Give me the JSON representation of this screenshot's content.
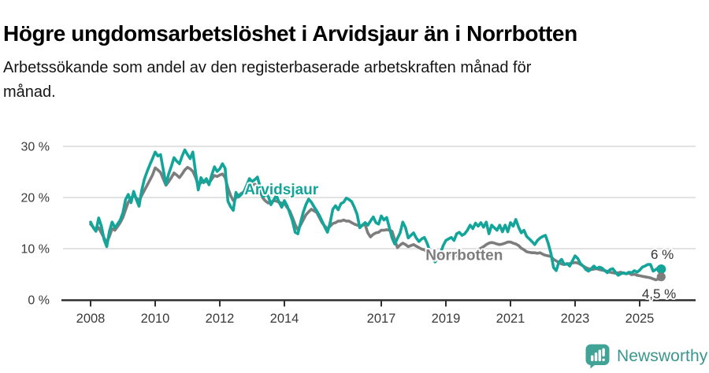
{
  "header": {
    "title": "Högre ungdomsarbetslöshet i Arvidsjaur än i Norrbotten",
    "subtitle_line1": "Arbetssökande som andel av den registerbaserade arbetskraften månad för",
    "subtitle_line2": "månad."
  },
  "branding": {
    "name": "Newsworthy",
    "logo_icon": "speech-bubble-bar-chart-icon",
    "icon_color": "#41a296",
    "text_color": "#3a968d"
  },
  "colors": {
    "arvidsjaur": "#13a59a",
    "norrbotten": "#7d7d7d",
    "axis": "#2f2f2f",
    "tick_label": "#3a3a3a",
    "gridline": "#d9d9d9",
    "end_label": "#333333"
  },
  "chart_data": {
    "type": "line",
    "title": "Högre ungdomsarbetslöshet i Arvidsjaur än i Norrbotten",
    "subtitle": "Arbetssökande som andel av den registerbaserade arbetskraften månad för månad.",
    "x_unit": "time, monthly observations",
    "x_start": {
      "year": 2008,
      "month": 1
    },
    "x_end": {
      "year": 2025,
      "month": 9
    },
    "x_frequency": "monthly",
    "x_tick_years": [
      2008,
      2010,
      2012,
      2014,
      2017,
      2019,
      2021,
      2023,
      2025
    ],
    "y_ticks": [
      {
        "value": 0,
        "label": "0 %"
      },
      {
        "value": 10,
        "label": "10 %"
      },
      {
        "value": 20,
        "label": "20 %"
      },
      {
        "value": 30,
        "label": "30 %"
      }
    ],
    "ylim": [
      0,
      30
    ],
    "grid": "horizontal",
    "legend": "inline-labels",
    "series": [
      {
        "name": "Arvidsjaur",
        "color": "#13a59a",
        "end_label": "6 %",
        "last_value": 6.0,
        "label_anchor": {
          "year": 2012.76,
          "value": 20.6
        },
        "values_monthly": [
          15.2,
          14.1,
          13.4,
          16.0,
          14.4,
          11.8,
          10.4,
          13.4,
          15.2,
          14.1,
          14.8,
          15.6,
          17.0,
          19.6,
          20.6,
          19.0,
          21.2,
          19.6,
          18.3,
          21.4,
          23.6,
          25.1,
          26.4,
          27.6,
          28.9,
          28.1,
          28.4,
          25.4,
          22.6,
          24.6,
          26.1,
          27.8,
          27.1,
          26.6,
          28.1,
          29.3,
          28.4,
          27.6,
          28.9,
          24.9,
          21.5,
          23.9,
          22.9,
          23.7,
          22.5,
          24.4,
          26.0,
          25.1,
          25.6,
          26.6,
          25.7,
          19.3,
          18.2,
          17.5,
          21.0,
          20.1,
          20.6,
          21.2,
          22.4,
          23.7,
          23.1,
          23.5,
          24.0,
          22.0,
          20.1,
          20.6,
          20.3,
          18.6,
          19.5,
          20.4,
          19.1,
          18.1,
          19.4,
          18.4,
          17.0,
          15.4,
          13.2,
          12.9,
          15.1,
          17.1,
          18.6,
          19.7,
          19.1,
          18.2,
          17.4,
          16.5,
          15.4,
          14.2,
          13.2,
          15.1,
          17.7,
          18.4,
          17.6,
          18.8,
          19.1,
          19.9,
          19.6,
          19.2,
          18.1,
          16.7,
          14.1,
          14.6,
          15.1,
          14.6,
          15.4,
          16.2,
          15.1,
          14.8,
          16.4,
          15.6,
          16.1,
          14.1,
          12.1,
          10.9,
          12.0,
          13.1,
          15.2,
          14.1,
          12.1,
          12.6,
          13.1,
          12.1,
          11.4,
          11.9,
          12.2,
          11.1,
          9.6,
          8.2,
          7.4,
          8.3,
          9.2,
          10.6,
          11.6,
          11.9,
          12.2,
          11.6,
          12.9,
          13.2,
          12.6,
          12.9,
          13.6,
          14.6,
          13.9,
          15.0,
          14.4,
          15.1,
          14.2,
          15.2,
          12.9,
          14.6,
          14.1,
          13.6,
          14.6,
          13.3,
          14.6,
          13.3,
          15.1,
          14.4,
          15.7,
          14.2,
          13.1,
          13.6,
          12.4,
          11.9,
          11.4,
          10.8,
          11.6,
          12.1,
          12.4,
          12.6,
          11.1,
          9.1,
          6.3,
          5.7,
          7.4,
          7.9,
          6.9,
          7.1,
          6.6,
          7.6,
          8.6,
          8.1,
          7.1,
          6.6,
          5.9,
          5.6,
          6.1,
          6.6,
          6.1,
          6.4,
          6.2,
          5.7,
          5.3,
          5.9,
          6.1,
          5.4,
          4.8,
          5.1,
          5.3,
          5.1,
          5.4,
          5.3,
          5.7,
          5.4,
          5.8,
          6.4,
          6.6,
          6.9,
          6.9,
          5.6,
          5.9,
          6.3,
          6.0
        ]
      },
      {
        "name": "Norrbotten",
        "color": "#7d7d7d",
        "end_label": "4,5 %",
        "last_value": 4.5,
        "label_anchor": {
          "year": 2018.37,
          "value": 7.8
        },
        "values_monthly": [
          14.8,
          14.2,
          13.6,
          14.1,
          13.1,
          12.1,
          11.2,
          12.4,
          13.9,
          13.6,
          14.3,
          15.1,
          16.1,
          17.6,
          19.1,
          19.9,
          20.4,
          19.9,
          19.4,
          20.4,
          21.4,
          22.4,
          23.4,
          24.4,
          25.8,
          25.4,
          24.9,
          23.6,
          22.4,
          23.1,
          23.9,
          24.8,
          24.4,
          23.9,
          24.6,
          25.4,
          25.9,
          25.6,
          25.1,
          23.9,
          22.4,
          22.9,
          23.3,
          23.1,
          22.8,
          23.6,
          24.3,
          24.1,
          24.4,
          24.6,
          23.9,
          21.9,
          20.4,
          19.4,
          19.9,
          20.4,
          20.8,
          21.1,
          21.6,
          22.1,
          22.3,
          22.6,
          22.1,
          21.1,
          19.9,
          19.3,
          18.9,
          19.1,
          19.4,
          19.3,
          19.1,
          18.9,
          18.8,
          18.1,
          17.4,
          16.1,
          14.7,
          13.7,
          14.6,
          15.6,
          16.6,
          17.2,
          17.7,
          17.4,
          17.1,
          16.1,
          15.1,
          14.4,
          13.9,
          14.4,
          14.9,
          15.1,
          15.4,
          15.4,
          15.6,
          15.4,
          15.4,
          15.1,
          14.8,
          14.6,
          14.4,
          14.6,
          14.7,
          13.1,
          12.3,
          12.8,
          13.1,
          13.2,
          13.6,
          13.6,
          13.7,
          13.6,
          13.4,
          11.7,
          10.2,
          10.7,
          11.1,
          10.8,
          10.4,
          10.6,
          10.8,
          10.5,
          10.2,
          9.9,
          9.8,
          9.3,
          8.6,
          8.1,
          7.7,
          8.1,
          8.4,
          8.8,
          9.1,
          9.0,
          8.8,
          8.6,
          8.6,
          8.4,
          8.3,
          8.4,
          8.6,
          8.8,
          9.1,
          9.4,
          9.8,
          10.1,
          10.4,
          10.8,
          11.1,
          11.2,
          11.1,
          10.9,
          10.8,
          10.9,
          11.1,
          11.3,
          11.3,
          11.1,
          10.9,
          10.6,
          10.1,
          9.8,
          9.4,
          9.3,
          9.2,
          9.2,
          9.1,
          9.2,
          8.9,
          8.7,
          8.6,
          8.5,
          7.9,
          7.6,
          7.3,
          7.0,
          6.9,
          7.0,
          7.1,
          7.2,
          7.3,
          7.2,
          6.9,
          6.6,
          6.3,
          6.1,
          5.9,
          6.0,
          6.1,
          5.9,
          5.8,
          5.7,
          5.6,
          5.4,
          5.3,
          5.2,
          5.3,
          5.4,
          5.2,
          5.1,
          5.2,
          4.9,
          5.0,
          4.8,
          4.7,
          4.6,
          4.5,
          4.4,
          4.3,
          4.1,
          3.9,
          4.1,
          4.5
        ]
      }
    ]
  }
}
